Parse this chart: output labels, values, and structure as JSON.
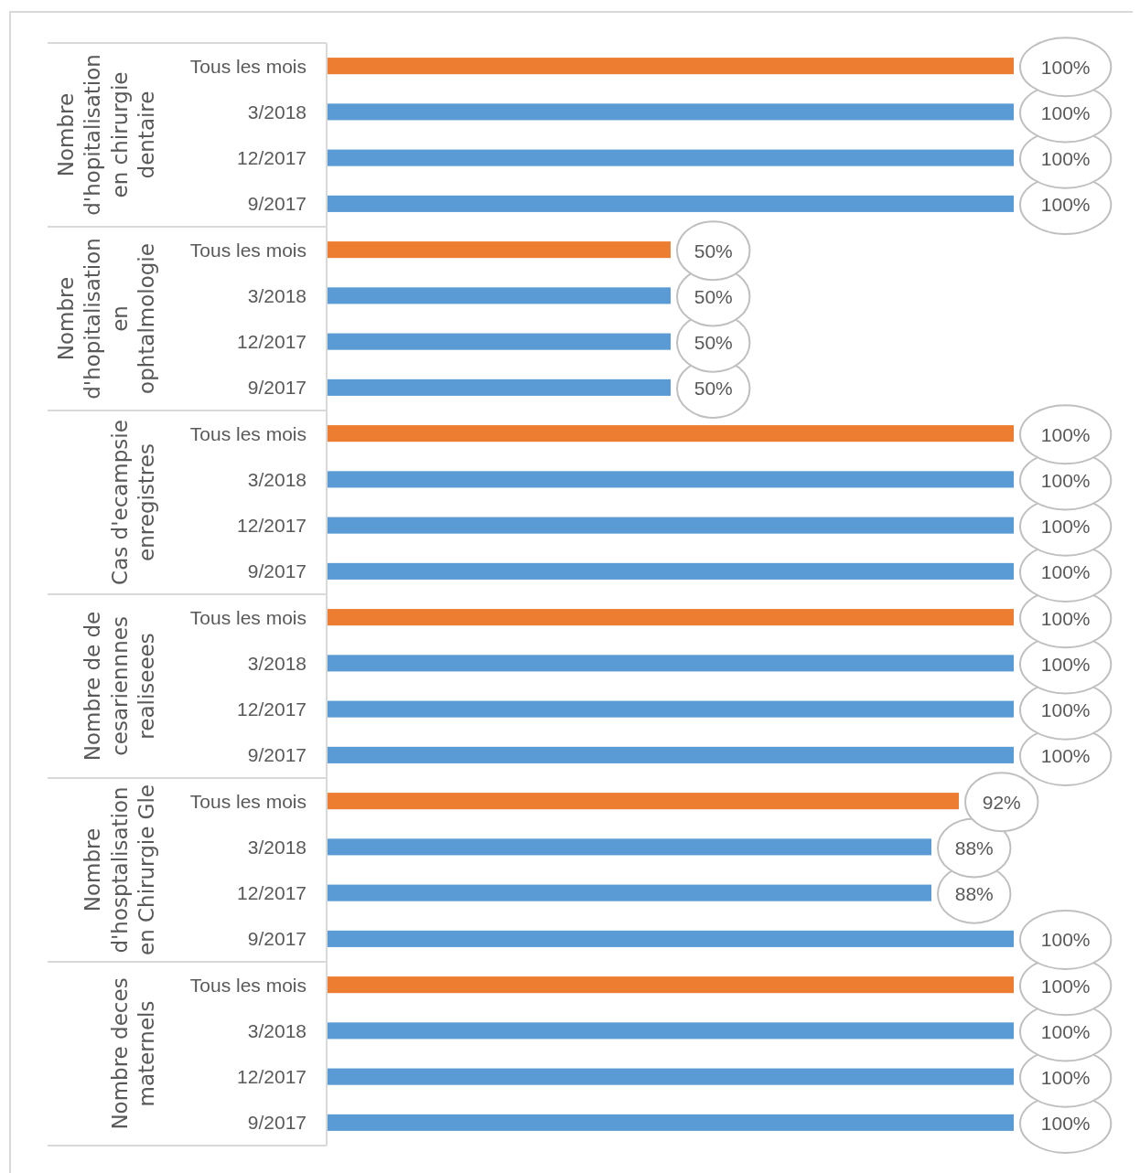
{
  "chart_data": [
    {
      "type": "bar",
      "orientation": "horizontal",
      "ylabel": "Nombre d'hopitalisation en chirurgie dentaire",
      "categories": [
        "Tous les mois",
        "3/2018",
        "12/2017",
        "9/2017"
      ],
      "values": [
        100,
        100,
        100,
        100
      ],
      "colors": [
        "#ed7d31",
        "#5b9bd5",
        "#5b9bd5",
        "#5b9bd5"
      ],
      "value_labels": [
        "100%",
        "100%",
        "100%",
        "100%"
      ]
    },
    {
      "type": "bar",
      "orientation": "horizontal",
      "ylabel": "Nombre d'hopitalisation en ophtalmologie",
      "categories": [
        "Tous les mois",
        "3/2018",
        "12/2017",
        "9/2017"
      ],
      "values": [
        50,
        50,
        50,
        50
      ],
      "colors": [
        "#ed7d31",
        "#5b9bd5",
        "#5b9bd5",
        "#5b9bd5"
      ],
      "value_labels": [
        "50%",
        "50%",
        "50%",
        "50%"
      ]
    },
    {
      "type": "bar",
      "orientation": "horizontal",
      "ylabel": "Cas d'ecampsie enregistres",
      "categories": [
        "Tous les mois",
        "3/2018",
        "12/2017",
        "9/2017"
      ],
      "values": [
        100,
        100,
        100,
        100
      ],
      "colors": [
        "#ed7d31",
        "#5b9bd5",
        "#5b9bd5",
        "#5b9bd5"
      ],
      "value_labels": [
        "100%",
        "100%",
        "100%",
        "100%"
      ]
    },
    {
      "type": "bar",
      "orientation": "horizontal",
      "ylabel": "Nombre de de cesariennnes realiseees",
      "categories": [
        "Tous les mois",
        "3/2018",
        "12/2017",
        "9/2017"
      ],
      "values": [
        100,
        100,
        100,
        100
      ],
      "colors": [
        "#ed7d31",
        "#5b9bd5",
        "#5b9bd5",
        "#5b9bd5"
      ],
      "value_labels": [
        "100%",
        "100%",
        "100%",
        "100%"
      ]
    },
    {
      "type": "bar",
      "orientation": "horizontal",
      "ylabel": "Nombre d'hosptalisation en Chirurgie Gle",
      "categories": [
        "Tous les mois",
        "3/2018",
        "12/2017",
        "9/2017"
      ],
      "values": [
        92,
        88,
        88,
        100
      ],
      "colors": [
        "#ed7d31",
        "#5b9bd5",
        "#5b9bd5",
        "#5b9bd5"
      ],
      "value_labels": [
        "92%",
        "88%",
        "88%",
        "100%"
      ]
    },
    {
      "type": "bar",
      "orientation": "horizontal",
      "ylabel": "Nombre deces maternels",
      "categories": [
        "Tous les mois",
        "3/2018",
        "12/2017",
        "9/2017"
      ],
      "values": [
        100,
        100,
        100,
        100
      ],
      "colors": [
        "#ed7d31",
        "#5b9bd5",
        "#5b9bd5",
        "#5b9bd5"
      ],
      "value_labels": [
        "100%",
        "100%",
        "100%",
        "100%"
      ]
    }
  ]
}
